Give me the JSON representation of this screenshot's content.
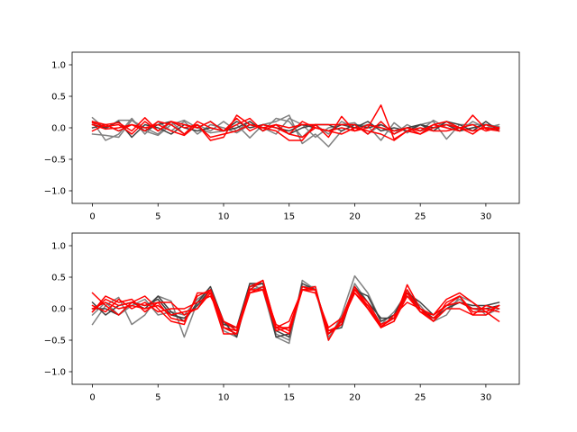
{
  "chart_data": [
    {
      "type": "line",
      "title": "",
      "xlabel": "",
      "ylabel": "",
      "xlim": [
        -1.55,
        32.55
      ],
      "ylim": [
        -1.2,
        1.2
      ],
      "x": [
        0,
        1,
        2,
        3,
        4,
        5,
        6,
        7,
        8,
        9,
        10,
        11,
        12,
        13,
        14,
        15,
        16,
        17,
        18,
        19,
        20,
        21,
        22,
        23,
        24,
        25,
        26,
        27,
        28,
        29,
        30,
        31
      ],
      "xticks": [
        0,
        5,
        10,
        15,
        20,
        25,
        30
      ],
      "xtick_labels": [
        "0",
        "5",
        "10",
        "15",
        "20",
        "25",
        "30"
      ],
      "yticks": [
        1.0,
        0.5,
        0.0,
        -0.5,
        -1.0
      ],
      "ytick_labels": [
        "1.0",
        "0.5",
        "0.0",
        "−0.5",
        "−1.0"
      ],
      "grid": false,
      "series": [
        {
          "color": "#808080",
          "values": [
            0.16,
            -0.02,
            0.12,
            0.12,
            -0.05,
            -0.12,
            0.05,
            0.12,
            0.0,
            -0.08,
            -0.05,
            0.05,
            -0.16,
            0.05,
            0.1,
            0.2,
            -0.25,
            -0.1,
            -0.3,
            -0.05,
            0.05,
            0.03,
            -0.2,
            0.08,
            -0.08,
            0.05,
            0.1,
            -0.18,
            0.05,
            0.05,
            0.05,
            0.02
          ]
        },
        {
          "color": "#808080",
          "values": [
            0.1,
            -0.2,
            -0.1,
            0.15,
            -0.1,
            0.1,
            -0.05,
            0.1,
            -0.1,
            0.05,
            0.0,
            -0.08,
            0.05,
            0.0,
            -0.1,
            0.15,
            0.05,
            -0.15,
            0.0,
            0.05,
            0.08,
            -0.1,
            0.05,
            -0.05,
            0.0,
            -0.05,
            0.12,
            0.0,
            -0.05,
            0.1,
            0.0,
            0.05
          ]
        },
        {
          "color": "#808080",
          "values": [
            -0.1,
            -0.12,
            -0.15,
            0.12,
            0.0,
            -0.1,
            0.1,
            -0.1,
            0.05,
            -0.05,
            0.1,
            -0.05,
            0.1,
            -0.05,
            0.15,
            0.1,
            -0.15,
            0.05,
            -0.1,
            0.1,
            0.0,
            0.05,
            0.0,
            -0.1,
            0.05,
            -0.05,
            0.0,
            0.1,
            -0.05,
            0.0,
            0.05,
            -0.05
          ]
        },
        {
          "color": "#404040",
          "values": [
            0.05,
            0.0,
            0.1,
            -0.15,
            0.05,
            0.0,
            -0.1,
            0.05,
            0.0,
            0.1,
            -0.05,
            0.0,
            0.1,
            -0.05,
            0.05,
            -0.1,
            0.0,
            0.05,
            0.05,
            -0.05,
            0.05,
            0.0,
            0.05,
            -0.05,
            0.0,
            0.05,
            -0.05,
            0.1,
            0.05,
            -0.05,
            0.1,
            -0.05
          ]
        },
        {
          "color": "#404040",
          "values": [
            0.0,
            0.05,
            -0.05,
            0.05,
            -0.05,
            0.05,
            0.1,
            0.0,
            -0.05,
            0.0,
            -0.05,
            0.1,
            0.0,
            0.05,
            0.0,
            -0.05,
            0.05,
            0.0,
            -0.05,
            0.05,
            0.0,
            0.1,
            -0.05,
            0.0,
            -0.05,
            0.05,
            0.0,
            0.05,
            -0.05,
            0.0,
            0.05,
            0.0
          ]
        },
        {
          "color": "#ff0000",
          "values": [
            0.08,
            0.02,
            0.05,
            -0.1,
            0.1,
            -0.05,
            0.1,
            0.0,
            0.05,
            -0.2,
            -0.15,
            0.2,
            0.05,
            0.0,
            -0.05,
            -0.2,
            -0.2,
            0.05,
            -0.15,
            0.18,
            -0.05,
            0.0,
            0.36,
            -0.18,
            -0.05,
            -0.1,
            0.05,
            0.0,
            -0.05,
            0.2,
            -0.02,
            -0.05
          ]
        },
        {
          "color": "#ff0000",
          "values": [
            -0.05,
            0.05,
            0.08,
            -0.05,
            0.16,
            -0.05,
            0.1,
            0.05,
            0.0,
            0.1,
            -0.05,
            0.05,
            0.15,
            -0.05,
            0.05,
            0.0,
            0.05,
            0.05,
            0.05,
            0.05,
            0.05,
            -0.1,
            0.1,
            -0.1,
            0.0,
            -0.05,
            0.05,
            0.1,
            0.0,
            -0.1,
            0.05,
            0.0
          ]
        },
        {
          "color": "#ff0000",
          "values": [
            0.1,
            0.05,
            -0.05,
            0.05,
            -0.05,
            0.1,
            0.05,
            -0.1,
            0.1,
            0.0,
            -0.05,
            0.15,
            -0.05,
            0.05,
            0.0,
            -0.1,
            0.1,
            0.0,
            -0.05,
            0.0,
            -0.05,
            0.05,
            0.0,
            -0.05,
            0.0,
            -0.1,
            0.0,
            0.05,
            0.0,
            0.05,
            -0.05,
            0.0
          ]
        },
        {
          "color": "#ff0000",
          "values": [
            0.05,
            -0.02,
            0.0,
            0.05,
            0.0,
            0.05,
            -0.05,
            -0.12,
            0.05,
            -0.15,
            -0.1,
            -0.05,
            0.05,
            0.0,
            0.05,
            -0.1,
            -0.15,
            0.0,
            -0.05,
            -0.1,
            0.0,
            -0.05,
            -0.1,
            -0.2,
            -0.05,
            0.0,
            -0.05,
            -0.05,
            0.0,
            -0.05,
            0.0,
            -0.02
          ]
        }
      ]
    },
    {
      "type": "line",
      "title": "",
      "xlabel": "",
      "ylabel": "",
      "xlim": [
        -1.55,
        32.55
      ],
      "ylim": [
        -1.2,
        1.2
      ],
      "x": [
        0,
        1,
        2,
        3,
        4,
        5,
        6,
        7,
        8,
        9,
        10,
        11,
        12,
        13,
        14,
        15,
        16,
        17,
        18,
        19,
        20,
        21,
        22,
        23,
        24,
        25,
        26,
        27,
        28,
        29,
        30,
        31
      ],
      "xticks": [
        0,
        5,
        10,
        15,
        20,
        25,
        30
      ],
      "xtick_labels": [
        "0",
        "5",
        "10",
        "15",
        "20",
        "25",
        "30"
      ],
      "yticks": [
        1.0,
        0.5,
        0.0,
        -0.5,
        -1.0
      ],
      "ytick_labels": [
        "1.0",
        "0.5",
        "0.0",
        "−0.5",
        "−1.0"
      ],
      "grid": false,
      "series": [
        {
          "color": "#808080",
          "values": [
            -0.25,
            0.05,
            0.18,
            -0.25,
            -0.1,
            0.2,
            0.12,
            -0.45,
            0.1,
            0.3,
            -0.35,
            -0.45,
            0.4,
            0.3,
            -0.45,
            -0.55,
            0.45,
            0.3,
            -0.5,
            -0.1,
            0.52,
            0.25,
            -0.2,
            -0.1,
            0.2,
            0.05,
            -0.2,
            -0.1,
            0.2,
            0.1,
            -0.1,
            0.0
          ]
        },
        {
          "color": "#808080",
          "values": [
            -0.1,
            0.1,
            -0.1,
            0.05,
            0.15,
            -0.1,
            -0.05,
            -0.1,
            0.15,
            0.3,
            -0.3,
            -0.4,
            0.3,
            0.35,
            -0.4,
            -0.5,
            0.35,
            0.35,
            -0.45,
            -0.2,
            0.4,
            0.1,
            -0.25,
            -0.05,
            0.25,
            -0.05,
            -0.15,
            0.0,
            0.15,
            0.0,
            -0.05,
            0.05
          ]
        },
        {
          "color": "#404040",
          "values": [
            0.1,
            -0.1,
            0.05,
            0.1,
            0.0,
            0.2,
            -0.05,
            -0.2,
            0.1,
            0.35,
            -0.2,
            -0.45,
            0.35,
            0.4,
            -0.45,
            -0.4,
            0.35,
            0.3,
            -0.4,
            -0.2,
            0.3,
            0.2,
            -0.2,
            -0.1,
            0.3,
            0.0,
            -0.15,
            0.0,
            0.1,
            0.05,
            0.05,
            0.1
          ]
        },
        {
          "color": "#404040",
          "values": [
            0.0,
            0.0,
            -0.1,
            0.1,
            0.05,
            0.15,
            -0.1,
            -0.15,
            0.05,
            0.3,
            -0.25,
            -0.3,
            0.4,
            0.4,
            -0.35,
            -0.45,
            0.4,
            0.3,
            -0.35,
            -0.3,
            0.35,
            0.1,
            -0.15,
            -0.15,
            0.25,
            0.1,
            -0.1,
            0.05,
            0.1,
            0.0,
            0.0,
            0.05
          ]
        },
        {
          "color": "#ff0000",
          "values": [
            0.25,
            0.05,
            -0.1,
            0.1,
            0.2,
            0.0,
            -0.2,
            -0.25,
            0.25,
            0.25,
            -0.4,
            -0.4,
            0.3,
            0.45,
            -0.3,
            -0.4,
            0.3,
            0.35,
            -0.5,
            -0.15,
            0.35,
            0.0,
            -0.3,
            -0.2,
            0.38,
            0.0,
            -0.1,
            0.15,
            0.25,
            0.1,
            -0.05,
            -0.2
          ]
        },
        {
          "color": "#ff0000",
          "values": [
            -0.05,
            0.2,
            0.1,
            0.15,
            -0.05,
            0.1,
            0.1,
            -0.1,
            0.0,
            0.25,
            -0.3,
            -0.4,
            0.25,
            0.3,
            -0.35,
            -0.3,
            0.3,
            0.3,
            -0.4,
            -0.25,
            0.3,
            0.05,
            -0.28,
            -0.15,
            0.3,
            -0.05,
            -0.2,
            0.1,
            0.2,
            -0.1,
            -0.1,
            0.05
          ]
        },
        {
          "color": "#ff0000",
          "values": [
            0.05,
            -0.05,
            0.15,
            0.0,
            0.1,
            -0.05,
            0.0,
            0.0,
            0.1,
            0.2,
            -0.2,
            -0.35,
            0.35,
            0.45,
            -0.3,
            -0.2,
            0.3,
            0.25,
            -0.3,
            -0.15,
            0.25,
            0.0,
            -0.3,
            -0.1,
            0.1,
            0.0,
            -0.2,
            0.0,
            0.0,
            -0.1,
            0.05,
            0.0
          ]
        },
        {
          "color": "#ff0000",
          "values": [
            0.0,
            0.1,
            0.0,
            0.05,
            0.0,
            0.05,
            -0.1,
            -0.05,
            0.0,
            0.3,
            -0.2,
            -0.3,
            0.25,
            0.35,
            -0.25,
            -0.35,
            0.35,
            0.3,
            -0.4,
            -0.2,
            0.25,
            0.05,
            -0.3,
            -0.2,
            0.2,
            -0.05,
            -0.15,
            0.05,
            0.1,
            0.0,
            0.0,
            -0.05
          ]
        },
        {
          "color": "#ff0000",
          "values": [
            -0.05,
            0.15,
            0.05,
            0.1,
            0.05,
            0.1,
            -0.15,
            -0.2,
            0.2,
            0.3,
            -0.3,
            -0.35,
            0.3,
            0.3,
            -0.3,
            -0.3,
            0.3,
            0.3,
            -0.35,
            -0.25,
            0.3,
            0.1,
            -0.25,
            -0.15,
            0.25,
            -0.05,
            -0.1,
            0.05,
            0.2,
            -0.05,
            -0.05,
            0.05
          ]
        }
      ]
    }
  ]
}
